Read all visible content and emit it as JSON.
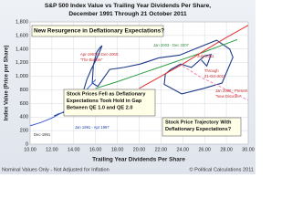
{
  "chart_data": {
    "type": "line",
    "title": "S&P 500 Index Value vs Trailing Year Dividends Per Share,",
    "subtitle": "December 1991 Through 21 October 2011",
    "x_label": "Trailing Year Dividends Per Share",
    "y_label": "Index Value (Price per Share)",
    "footer_left": "Nominal Values Only - Not Adjusted for Inflation",
    "footer_right": "© Political Calculations 2011",
    "xlim": [
      10,
      30
    ],
    "xticks": [
      {
        "value": 10,
        "label": "10.00"
      },
      {
        "value": 12,
        "label": "12.00"
      },
      {
        "value": 14,
        "label": "14.00"
      },
      {
        "value": 16,
        "label": "16.00"
      },
      {
        "value": 18,
        "label": "18.00"
      },
      {
        "value": 20,
        "label": "20.00"
      },
      {
        "value": 22,
        "label": "22.00"
      },
      {
        "value": 24,
        "label": "24.00"
      },
      {
        "value": 26,
        "label": "26.00"
      },
      {
        "value": 28,
        "label": "28.00"
      },
      {
        "value": 30,
        "label": "30.00"
      }
    ],
    "ylim": [
      0,
      1800
    ],
    "yticks": [
      0,
      200,
      400,
      600,
      800,
      {
        "value": 1000,
        "label": "1,000"
      },
      {
        "value": 1200,
        "label": "1,200"
      },
      {
        "value": 1400,
        "label": "1,400"
      },
      {
        "value": 1600,
        "label": "1,600"
      },
      {
        "value": 1800,
        "label": "1,800"
      }
    ],
    "grid": true,
    "series": [
      {
        "color": "#1f3a8a",
        "x": [
          12.2,
          12.4,
          12.6,
          12.9,
          13.2,
          13.6,
          14.1,
          14.6,
          14.9,
          15.2,
          15.6,
          16.0,
          16.3,
          16.6,
          16.4,
          16.1,
          15.8,
          15.7,
          16.2,
          17.3,
          18.6,
          20.1,
          21.8,
          23.7,
          25.4,
          27.1,
          28.3,
          28.6,
          27.6,
          25.9,
          23.9,
          22.3,
          22.4,
          22.9,
          23.8,
          24.8,
          26.0,
          26.6,
          26.2,
          25.7
        ],
        "values": [
          417,
          430,
          445,
          460,
          470,
          490,
          560,
          680,
          790,
          950,
          1100,
          1230,
          1330,
          1450,
          1420,
          1350,
          1160,
          900,
          850,
          1100,
          1130,
          1180,
          1270,
          1310,
          1420,
          1530,
          1400,
          1280,
          900,
          820,
          740,
          880,
          1030,
          1100,
          1180,
          1130,
          1300,
          1320,
          1150,
          1240
        ]
      },
      {
        "color": "#3b5bdb",
        "x": [
          10,
          11,
          12,
          13,
          14,
          15,
          16
        ],
        "values": [
          270,
          320,
          385,
          470,
          600,
          770,
          950
        ]
      },
      {
        "color": "#2f9e44",
        "x": [
          16,
          18,
          20,
          22,
          24,
          26,
          28,
          29
        ],
        "values": [
          820,
          920,
          1030,
          1140,
          1250,
          1360,
          1480,
          1540
        ]
      },
      {
        "color": "#e03131",
        "x": [
          20,
          22,
          24,
          26,
          28,
          30
        ],
        "values": [
          820,
          1000,
          1180,
          1380,
          1570,
          1750
        ]
      },
      {
        "color": "#f783ac",
        "x": [
          24,
          25.5,
          27,
          28.5,
          30
        ],
        "values": [
          1150,
          1000,
          880,
          760,
          650
        ]
      }
    ],
    "annotations": [
      [
        "New Resurgence in Deflationary Expectations?"
      ],
      [
        "Stock Prices Fell as Deflationary",
        "Expectations Took Hold in Gap",
        "Between QE 1.0 and QE 2.0"
      ],
      [
        "Stock Price Trajectory With",
        "Deflationary Expectations?"
      ],
      [
        "Apr-1997 to Dec-2000:",
        "\"The Bubble\""
      ],
      [
        "Jan 1991 - Apr 1997"
      ],
      [
        "Jan 2003 - Dec 2007"
      ],
      [
        "July 2011"
      ],
      [
        "Through",
        "21-Oct-2011"
      ],
      [
        "Jan 2008 - Present",
        "\"New Disorder\""
      ],
      [
        "Dec-1991"
      ]
    ]
  }
}
